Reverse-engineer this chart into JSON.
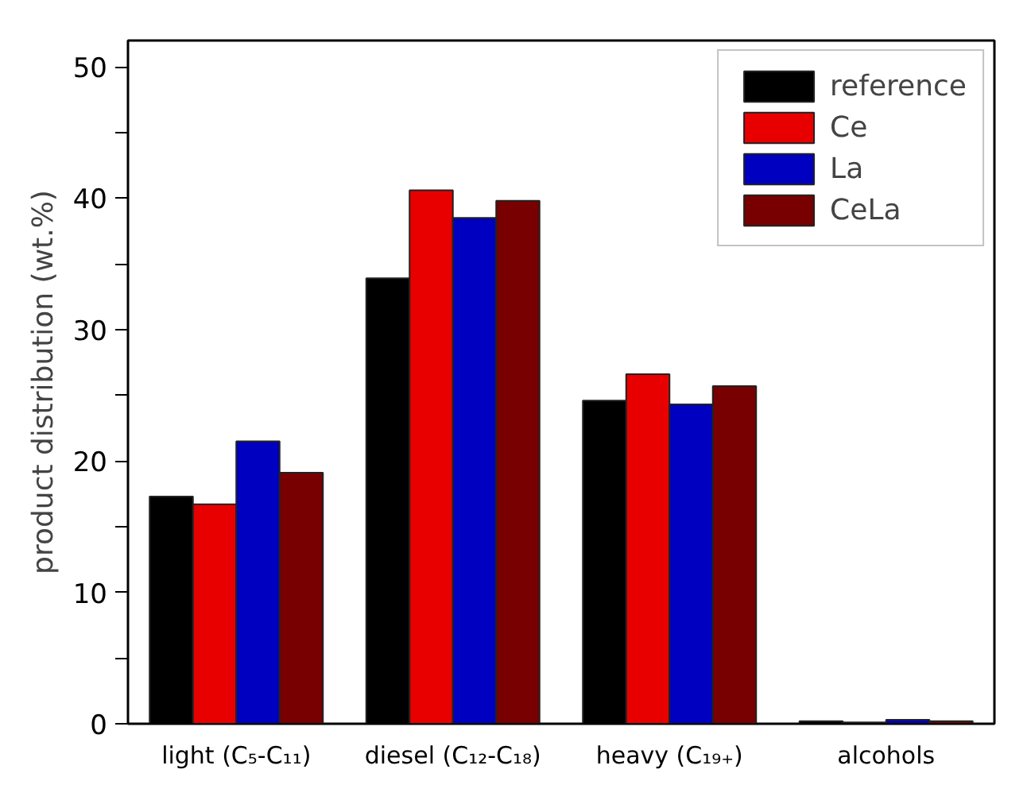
{
  "chart_data": {
    "type": "bar",
    "ylabel": "product distribution (wt.%)",
    "categories": [
      "light (C₅-C₁₁)",
      "diesel (C₁₂-C₁₈)",
      "heavy (C₁₉₊)",
      "alcohols"
    ],
    "series": [
      {
        "name": "reference",
        "color": "#000000",
        "values": [
          17.3,
          33.9,
          24.6,
          0.2
        ]
      },
      {
        "name": "Ce",
        "color": "#e80000",
        "values": [
          16.7,
          40.6,
          26.6,
          0.1
        ]
      },
      {
        "name": "La",
        "color": "#0000c0",
        "values": [
          21.5,
          38.5,
          24.3,
          0.3
        ]
      },
      {
        "name": "CeLa",
        "color": "#780000",
        "values": [
          19.1,
          39.8,
          25.7,
          0.2
        ]
      }
    ],
    "ylim": [
      0,
      52
    ],
    "yticks": [
      0,
      {
        "value": 5,
        "label": null
      },
      10,
      {
        "value": 15,
        "label": null
      },
      20,
      {
        "value": 25,
        "label": null
      },
      30,
      {
        "value": 35,
        "label": null
      },
      40,
      {
        "value": 45,
        "label": null
      },
      50
    ],
    "grid": false,
    "legend": "top right"
  }
}
